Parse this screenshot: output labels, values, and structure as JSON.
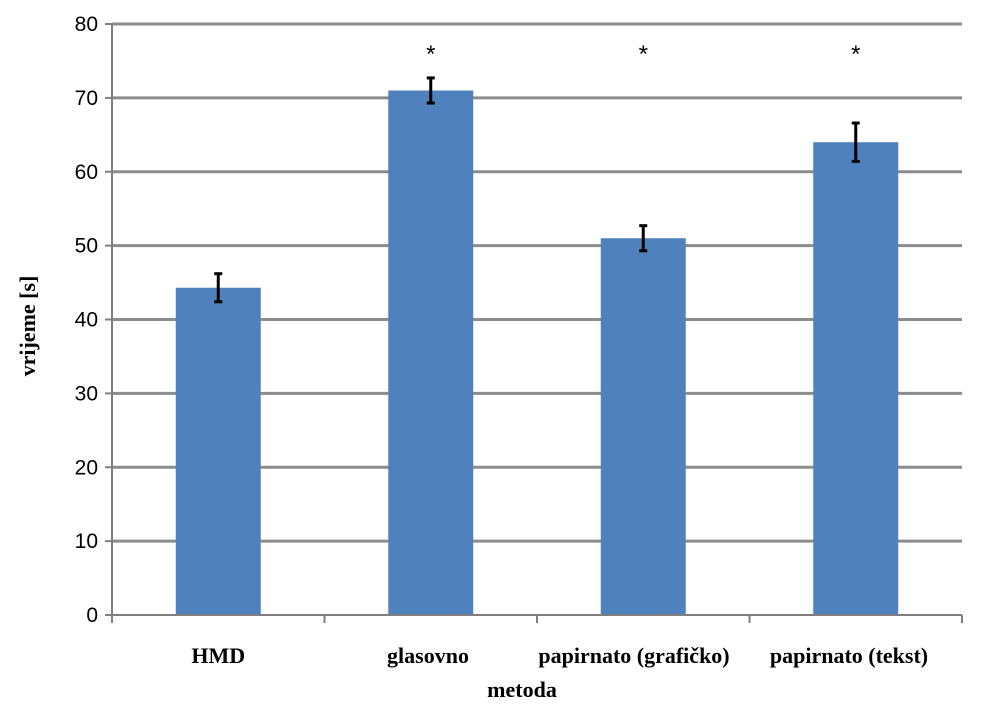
{
  "chart_data": {
    "type": "bar",
    "categories": [
      "HMD",
      "glasovno",
      "papirnato (grafičko)",
      "papirnato (tekst)"
    ],
    "values": [
      44.3,
      71.0,
      51.0,
      64.0
    ],
    "errors": [
      1.9,
      1.7,
      1.7,
      2.6
    ],
    "significance": [
      "",
      "*",
      "*",
      "*"
    ],
    "xlabel": "metoda",
    "ylabel": "vrijeme [s]",
    "ylim": [
      0,
      80
    ],
    "yticks": [
      0,
      10,
      20,
      30,
      40,
      50,
      60,
      70,
      80
    ],
    "grid": true,
    "legend": "none",
    "colors": {
      "bar": "#4f81bd",
      "grid": "#8c8c8c",
      "axis": "#7f7f7f",
      "error": "#000000"
    }
  }
}
